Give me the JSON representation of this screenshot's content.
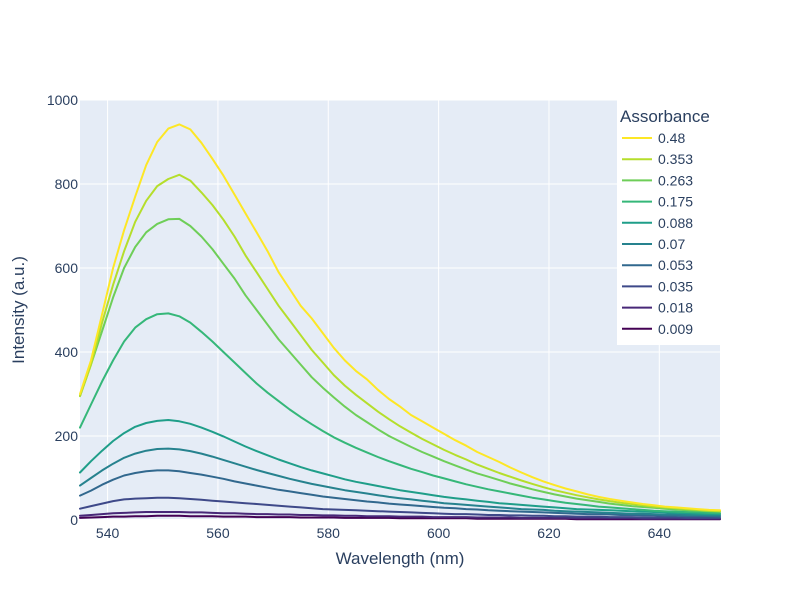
{
  "chart_data": {
    "type": "line",
    "title": "",
    "xlabel": "Wavelength (nm)",
    "ylabel": "Intensity (a.u.)",
    "xlim": [
      535,
      651
    ],
    "ylim": [
      0,
      1000
    ],
    "x_ticks": [
      540,
      560,
      580,
      600,
      620,
      640
    ],
    "y_ticks": [
      0,
      200,
      400,
      600,
      800,
      1000
    ],
    "grid": true,
    "legend_title": "Assorbance",
    "legend_placement": "top-right",
    "x": [
      535,
      537,
      539,
      541,
      543,
      545,
      547,
      549,
      551,
      553,
      555,
      557,
      559,
      561,
      563,
      565,
      567,
      569,
      571,
      573,
      575,
      577,
      579,
      581,
      583,
      585,
      587,
      589,
      591,
      593,
      595,
      597,
      599,
      601,
      603,
      605,
      607,
      609,
      611,
      613,
      615,
      617,
      619,
      621,
      623,
      625,
      627,
      629,
      631,
      633,
      635,
      637,
      639,
      641,
      643,
      645,
      647,
      649,
      651
    ],
    "series": [
      {
        "name": "0.48",
        "color": "#fde725",
        "values": [
          300,
          380,
          490,
          600,
          690,
          770,
          845,
          900,
          932,
          942,
          930,
          898,
          860,
          820,
          775,
          730,
          685,
          640,
          590,
          550,
          510,
          480,
          445,
          410,
          380,
          355,
          335,
          310,
          288,
          270,
          250,
          235,
          220,
          205,
          190,
          177,
          162,
          150,
          138,
          125,
          113,
          102,
          92,
          83,
          75,
          68,
          61,
          55,
          50,
          46,
          42,
          38,
          35,
          32,
          30,
          28,
          26,
          24,
          23
        ]
      },
      {
        "name": "0.353",
        "color": "#b5de2b",
        "values": [
          295,
          370,
          470,
          560,
          640,
          710,
          760,
          795,
          812,
          822,
          808,
          780,
          750,
          715,
          675,
          630,
          590,
          550,
          510,
          475,
          440,
          405,
          375,
          345,
          320,
          298,
          278,
          258,
          240,
          223,
          208,
          193,
          180,
          167,
          155,
          144,
          132,
          122,
          112,
          103,
          94,
          86,
          78,
          71,
          65,
          59,
          54,
          49,
          45,
          41,
          38,
          35,
          32,
          30,
          28,
          26,
          24,
          22,
          21
        ]
      },
      {
        "name": "0.263",
        "color": "#6ece58",
        "values": [
          295,
          370,
          450,
          530,
          600,
          650,
          685,
          705,
          716,
          717,
          700,
          675,
          645,
          610,
          575,
          535,
          500,
          465,
          430,
          400,
          370,
          340,
          315,
          292,
          270,
          250,
          233,
          216,
          200,
          187,
          174,
          162,
          151,
          140,
          130,
          120,
          111,
          103,
          95,
          87,
          80,
          73,
          67,
          61,
          56,
          51,
          47,
          43,
          39,
          36,
          33,
          31,
          29,
          27,
          25,
          23,
          22,
          21,
          20
        ]
      },
      {
        "name": "0.175",
        "color": "#35b779",
        "values": [
          220,
          275,
          330,
          380,
          425,
          458,
          478,
          490,
          492,
          485,
          470,
          448,
          425,
          400,
          375,
          350,
          325,
          303,
          283,
          263,
          245,
          228,
          212,
          197,
          184,
          172,
          161,
          150,
          140,
          131,
          122,
          114,
          106,
          99,
          92,
          85,
          79,
          73,
          68,
          63,
          58,
          53,
          49,
          45,
          41,
          38,
          35,
          32,
          30,
          28,
          26,
          24,
          22,
          21,
          20,
          19,
          18,
          17,
          16
        ]
      },
      {
        "name": "0.088",
        "color": "#1f9e89",
        "values": [
          113,
          140,
          165,
          188,
          207,
          222,
          231,
          236,
          238,
          235,
          229,
          220,
          210,
          199,
          187,
          175,
          164,
          154,
          144,
          135,
          126,
          118,
          111,
          104,
          97,
          91,
          86,
          81,
          76,
          71,
          67,
          63,
          59,
          55,
          52,
          49,
          46,
          43,
          40,
          38,
          36,
          34,
          32,
          30,
          28,
          26,
          25,
          24,
          23,
          22,
          21,
          20,
          19,
          18,
          17,
          16,
          15,
          14,
          14
        ]
      },
      {
        "name": "0.07",
        "color": "#26828e",
        "values": [
          82,
          100,
          118,
          134,
          148,
          158,
          165,
          169,
          170,
          168,
          164,
          158,
          151,
          143,
          135,
          127,
          119,
          112,
          105,
          98,
          92,
          86,
          81,
          76,
          71,
          67,
          63,
          59,
          55,
          52,
          49,
          46,
          43,
          40,
          38,
          36,
          34,
          32,
          30,
          28,
          26,
          25,
          24,
          22,
          21,
          20,
          19,
          18,
          17,
          16,
          15,
          15,
          14,
          13,
          13,
          12,
          12,
          11,
          11
        ]
      },
      {
        "name": "0.053",
        "color": "#31688e",
        "values": [
          58,
          70,
          84,
          96,
          106,
          112,
          116,
          118,
          118,
          116,
          112,
          108,
          103,
          98,
          92,
          87,
          82,
          77,
          72,
          68,
          64,
          60,
          56,
          53,
          50,
          47,
          44,
          42,
          39,
          37,
          35,
          33,
          31,
          29,
          28,
          26,
          25,
          23,
          22,
          21,
          20,
          19,
          18,
          17,
          16,
          15,
          14,
          14,
          13,
          12,
          12,
          11,
          11,
          10,
          10,
          9,
          9,
          9,
          8
        ]
      },
      {
        "name": "0.035",
        "color": "#3e4989",
        "values": [
          27,
          33,
          39,
          45,
          49,
          51,
          52,
          53,
          53,
          52,
          50,
          48,
          46,
          44,
          42,
          40,
          38,
          36,
          34,
          32,
          30,
          28,
          26,
          25,
          24,
          23,
          22,
          21,
          20,
          19,
          18,
          17,
          16,
          15,
          14,
          14,
          13,
          12,
          12,
          11,
          11,
          10,
          10,
          9,
          9,
          8,
          8,
          8,
          7,
          7,
          7,
          6,
          6,
          6,
          6,
          5,
          5,
          5,
          5
        ]
      },
      {
        "name": "0.018",
        "color": "#482878",
        "values": [
          10,
          12,
          14,
          16,
          17,
          18,
          19,
          19,
          19,
          19,
          18,
          18,
          17,
          16,
          16,
          15,
          14,
          14,
          13,
          13,
          12,
          12,
          11,
          11,
          10,
          10,
          9,
          9,
          9,
          8,
          8,
          8,
          7,
          7,
          7,
          7,
          6,
          6,
          6,
          6,
          5,
          5,
          5,
          5,
          5,
          4,
          4,
          4,
          4,
          4,
          4,
          3,
          3,
          3,
          3,
          3,
          3,
          3,
          3
        ]
      },
      {
        "name": "0.009",
        "color": "#440154",
        "values": [
          5,
          6,
          7,
          8,
          8,
          9,
          9,
          10,
          10,
          10,
          9,
          9,
          9,
          8,
          8,
          8,
          7,
          7,
          7,
          7,
          6,
          6,
          6,
          6,
          5,
          5,
          5,
          5,
          5,
          4,
          4,
          4,
          4,
          4,
          4,
          4,
          3,
          3,
          3,
          3,
          3,
          3,
          3,
          3,
          3,
          2,
          2,
          2,
          2,
          2,
          2,
          2,
          2,
          2,
          2,
          2,
          2,
          2,
          2
        ]
      }
    ]
  }
}
